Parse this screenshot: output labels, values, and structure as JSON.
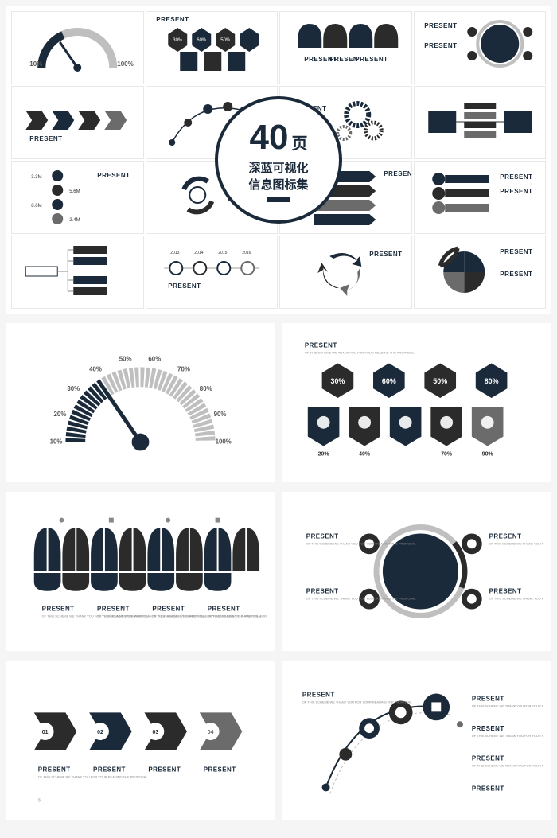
{
  "colors": {
    "navy": "#1b2a3a",
    "dark": "#2b2b2b",
    "gray": "#6b6b6b",
    "lightgray": "#bfbfbf",
    "bg": "#ffffff",
    "border": "#e8e8e8"
  },
  "badge": {
    "number": "40",
    "unit": "页",
    "line1": "深蓝可视化",
    "line2": "信息图标集"
  },
  "present_label": "PRESENT",
  "present_sub": "OF THIS SCHEME WE THANK YOU FOR YOUR READING THE PROPOSAL",
  "gauge": {
    "ticks": [
      "10%",
      "20%",
      "30%",
      "40%",
      "50%",
      "60%",
      "70%",
      "80%",
      "90%",
      "100%"
    ],
    "filled_segments": 13,
    "total_segments": 40,
    "needle_angle": 60,
    "fill_color": "#1b2a3a",
    "empty_color": "#bfbfbf"
  },
  "hexagons": {
    "items": [
      {
        "pct": "30%",
        "sub_pct": "20%",
        "colors": [
          "#2b2b2b",
          "#1b2a3a"
        ]
      },
      {
        "pct": "60%",
        "sub_pct": "40%",
        "colors": [
          "#1b2a3a",
          "#2b2b2b"
        ]
      },
      {
        "pct": "50%",
        "sub_pct": "70%",
        "colors": [
          "#2b2b2b",
          "#1b2a3a"
        ]
      },
      {
        "pct": "80%",
        "sub_pct": "90%",
        "colors": [
          "#1b2a3a",
          "#6b6b6b"
        ]
      }
    ]
  },
  "petals": {
    "count": 4,
    "colors": [
      "#1b2a3a",
      "#2b2b2b",
      "#1b2a3a",
      "#2b2b2b"
    ]
  },
  "circle_hub": {
    "center_color": "#1b2a3a",
    "ring_color": "#bfbfbf",
    "nodes": 4
  },
  "chevrons": {
    "items": [
      {
        "num": "01",
        "color": "#2b2b2b"
      },
      {
        "num": "02",
        "color": "#1b2a3a"
      },
      {
        "num": "03",
        "color": "#2b2b2b"
      },
      {
        "num": "04",
        "color": "#6b6b6b"
      }
    ]
  },
  "arc_nodes": {
    "count": 5,
    "arc_color": "#1b2a3a"
  },
  "social": {
    "items": [
      "3.3M",
      "5.6M",
      "8.6M",
      "2.4M"
    ]
  },
  "timeline": {
    "years": [
      "2013",
      "2014",
      "2015",
      "2016"
    ]
  }
}
